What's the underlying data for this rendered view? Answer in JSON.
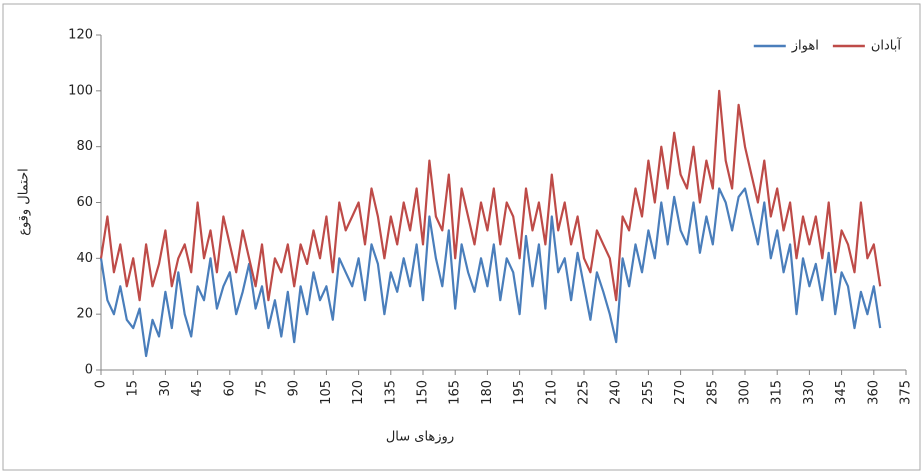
{
  "chart_data": {
    "type": "line",
    "x_label": "روزهای سال",
    "y_label": "احتمال وقوع",
    "x": [
      0,
      3,
      6,
      9,
      12,
      15,
      18,
      21,
      24,
      27,
      30,
      33,
      36,
      39,
      42,
      45,
      48,
      51,
      54,
      57,
      60,
      63,
      66,
      69,
      72,
      75,
      78,
      81,
      84,
      87,
      90,
      93,
      96,
      99,
      102,
      105,
      108,
      111,
      114,
      117,
      120,
      123,
      126,
      129,
      132,
      135,
      138,
      141,
      144,
      147,
      150,
      153,
      156,
      159,
      162,
      165,
      168,
      171,
      174,
      177,
      180,
      183,
      186,
      189,
      192,
      195,
      198,
      201,
      204,
      207,
      210,
      213,
      216,
      219,
      222,
      225,
      228,
      231,
      234,
      237,
      240,
      243,
      246,
      249,
      252,
      255,
      258,
      261,
      264,
      267,
      270,
      273,
      276,
      279,
      282,
      285,
      288,
      291,
      294,
      297,
      300,
      303,
      306,
      309,
      312,
      315,
      318,
      321,
      324,
      327,
      330,
      333,
      336,
      339,
      342,
      345,
      348,
      351,
      354,
      357,
      360,
      363
    ],
    "series": [
      {
        "name": "اهواز",
        "color": "#4a7ebb",
        "values": [
          40,
          25,
          20,
          30,
          18,
          15,
          22,
          5,
          18,
          12,
          28,
          15,
          35,
          20,
          12,
          30,
          25,
          40,
          22,
          30,
          35,
          20,
          28,
          38,
          22,
          30,
          15,
          25,
          12,
          28,
          10,
          30,
          20,
          35,
          25,
          30,
          18,
          40,
          35,
          30,
          40,
          25,
          45,
          38,
          20,
          35,
          28,
          40,
          30,
          45,
          25,
          55,
          40,
          30,
          50,
          22,
          45,
          35,
          28,
          40,
          30,
          45,
          25,
          40,
          35,
          20,
          48,
          30,
          45,
          22,
          55,
          35,
          40,
          25,
          42,
          30,
          18,
          35,
          28,
          20,
          10,
          40,
          30,
          45,
          35,
          50,
          40,
          60,
          45,
          62,
          50,
          45,
          60,
          42,
          55,
          45,
          65,
          60,
          50,
          62,
          65,
          55,
          45,
          60,
          40,
          50,
          35,
          45,
          20,
          40,
          30,
          38,
          25,
          42,
          20,
          35,
          30,
          15,
          28,
          20,
          30,
          15
        ]
      },
      {
        "name": "آبادان",
        "color": "#be4b48",
        "values": [
          40,
          55,
          35,
          45,
          30,
          40,
          25,
          45,
          30,
          38,
          50,
          30,
          40,
          45,
          35,
          60,
          40,
          50,
          35,
          55,
          45,
          35,
          50,
          40,
          30,
          45,
          25,
          40,
          35,
          45,
          30,
          45,
          38,
          50,
          40,
          55,
          35,
          60,
          50,
          55,
          60,
          45,
          65,
          55,
          40,
          55,
          45,
          60,
          50,
          65,
          45,
          75,
          55,
          50,
          70,
          40,
          65,
          55,
          45,
          60,
          50,
          65,
          45,
          60,
          55,
          40,
          65,
          50,
          60,
          45,
          70,
          50,
          60,
          45,
          55,
          40,
          35,
          50,
          45,
          40,
          25,
          55,
          50,
          65,
          55,
          75,
          60,
          80,
          65,
          85,
          70,
          65,
          80,
          60,
          75,
          65,
          100,
          75,
          65,
          95,
          80,
          70,
          60,
          75,
          55,
          65,
          50,
          60,
          40,
          55,
          45,
          55,
          40,
          60,
          35,
          50,
          45,
          35,
          60,
          40,
          45,
          30
        ]
      }
    ],
    "xlim": [
      0,
      375
    ],
    "xticks": [
      0,
      15,
      30,
      45,
      60,
      75,
      90,
      105,
      120,
      135,
      150,
      165,
      180,
      195,
      210,
      225,
      240,
      255,
      270,
      285,
      300,
      315,
      330,
      345,
      360,
      375
    ],
    "ylim": [
      0,
      120
    ],
    "yticks": [
      0,
      20,
      40,
      60,
      80,
      100,
      120
    ],
    "grid": false,
    "legend": "top-right"
  }
}
